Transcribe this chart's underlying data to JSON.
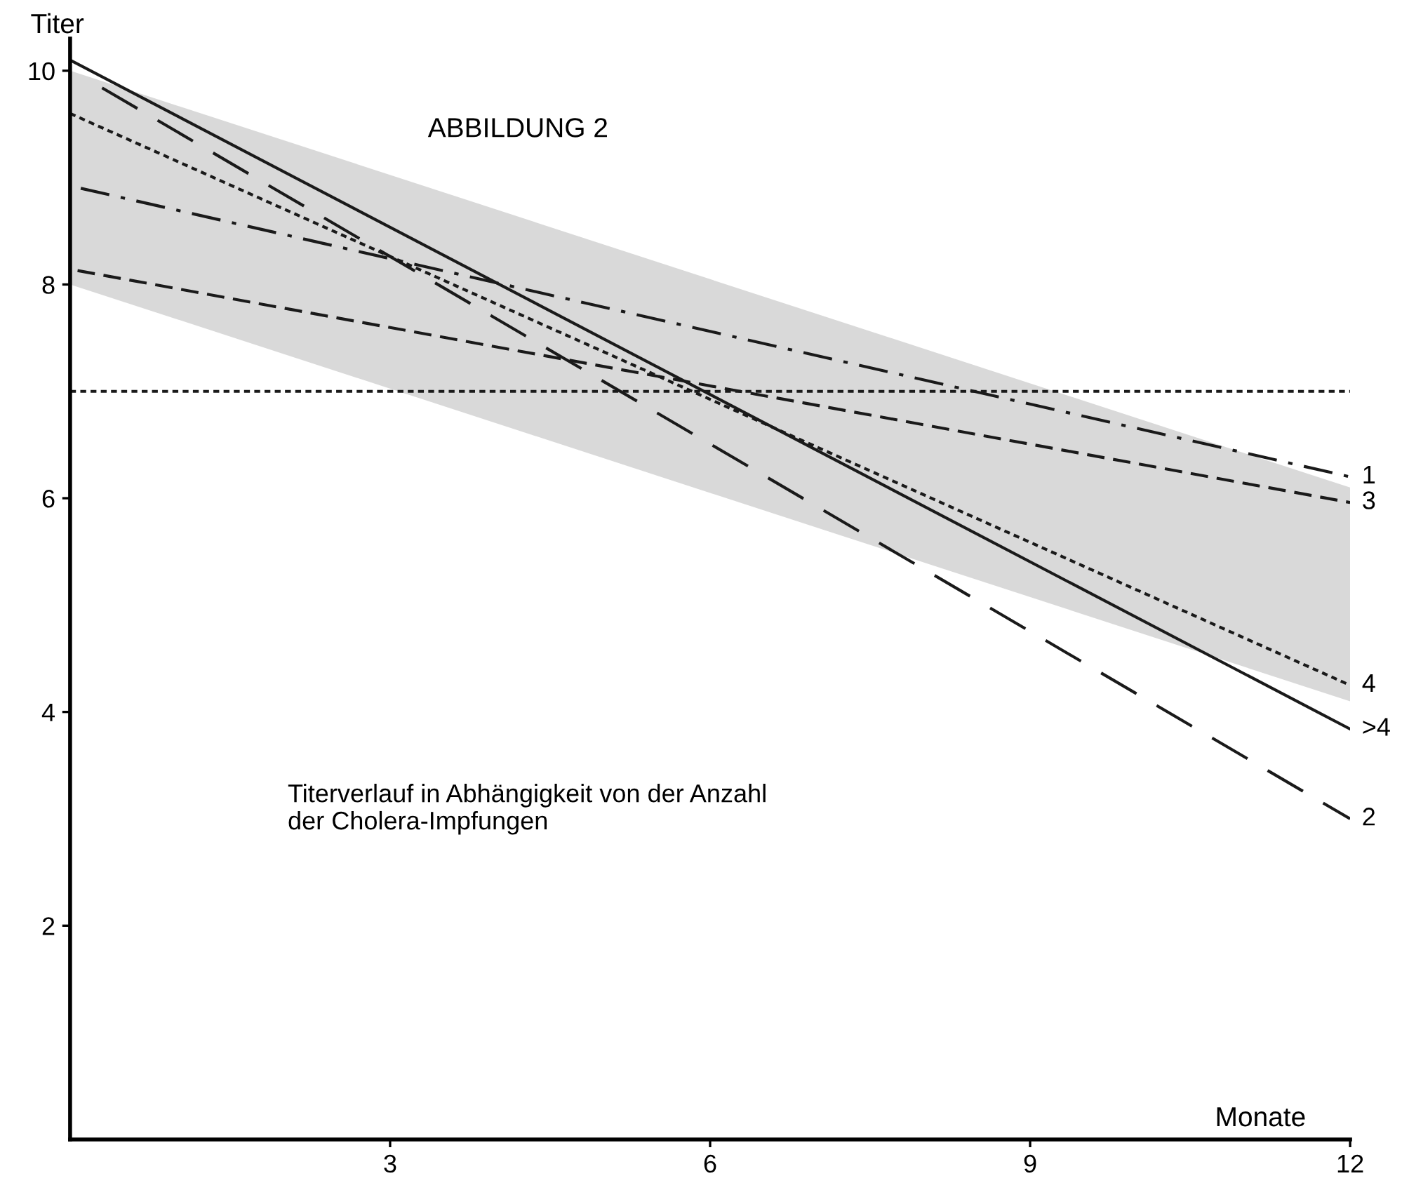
{
  "chart_data": {
    "type": "line",
    "title": "ABBILDUNG 2",
    "xlabel": "Monate",
    "ylabel": "Titer",
    "annotations": [
      "Titerverlauf in Abhängigkeit von der Anzahl\nder Cholera-Impfungen"
    ],
    "xlim": [
      0,
      12
    ],
    "ylim": [
      0,
      10.3
    ],
    "xticks": [
      3,
      6,
      9,
      12
    ],
    "yticks": [
      2,
      4,
      6,
      8,
      10
    ],
    "grid": false,
    "legend": false,
    "series": [
      {
        "type": "line",
        "color": "#cfcfcf",
        "x": [
          0,
          12
        ],
        "values": [
          null,
          null
        ],
        "lower": [
          8.0,
          4.1
        ],
        "upper": [
          10.0,
          6.1
        ]
      },
      {
        "name": "1",
        "color": "#1a1a1a",
        "line_style": "dashdot",
        "x": [
          0.1,
          12
        ],
        "values": [
          8.9,
          6.2
        ]
      },
      {
        "name": "3",
        "color": "#1a1a1a",
        "line_style": "dashed",
        "x": [
          0.07,
          12
        ],
        "values": [
          8.13,
          5.96
        ]
      },
      {
        "name": "4",
        "color": "#1a1a1a",
        "line_style": "dotted",
        "x": [
          0,
          12
        ],
        "values": [
          9.6,
          4.25
        ]
      },
      {
        "name": ">4",
        "color": "#1a1a1a",
        "line_style": "solid",
        "x": [
          0,
          12
        ],
        "values": [
          10.1,
          3.84
        ]
      },
      {
        "name": "2",
        "color": "#1a1a1a",
        "line_style": "longdash",
        "x": [
          0.3,
          12
        ],
        "values": [
          9.84,
          3.0
        ]
      }
    ],
    "ref_lines": [
      {
        "axis": "y",
        "value": 7,
        "color": "#1a1a1a",
        "line_style": "dotted"
      }
    ]
  }
}
